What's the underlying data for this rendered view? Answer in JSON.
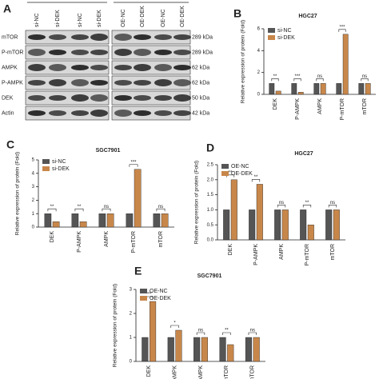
{
  "blot": {
    "panel": "A",
    "columns": [
      "si-NC",
      "si-DEK",
      "si-NC",
      "si-DEK",
      "OE-NC",
      "OE-DEK",
      "OE-NC",
      "OE-DEK"
    ],
    "rows": [
      "mTOR",
      "P-mTOR",
      "AMPK",
      "P-AMPK",
      "DEK",
      "Actin"
    ],
    "sizes": [
      "289 kDa",
      "289 kDa",
      "62 kDa",
      "62 kDa",
      "50 kDa",
      "42 kDa"
    ]
  },
  "chart_data": [
    {
      "type": "bar",
      "panel": "B",
      "title": "HGC27",
      "ylabel": "Relative expression of protein (Fold)",
      "categories": [
        "DEK",
        "P-AMPK",
        "AMPK",
        "P-mTOR",
        "mTOR"
      ],
      "series": [
        {
          "name": "si-NC",
          "color": "#555555",
          "values": [
            1,
            1,
            1,
            1,
            1
          ]
        },
        {
          "name": "si-DEK",
          "color": "#c8874a",
          "values": [
            0.3,
            0.2,
            1,
            5.5,
            1
          ]
        }
      ],
      "annotations": [
        "**",
        "***",
        "ns",
        "***",
        "ns"
      ],
      "ylim": [
        0,
        6
      ],
      "yticks": [
        0,
        2,
        4,
        6
      ],
      "legend": "upper left"
    },
    {
      "type": "bar",
      "panel": "C",
      "title": "SGC7901",
      "ylabel": "Relative expression of protein (Fold)",
      "categories": [
        "DEK",
        "P-AMPK",
        "AMPK",
        "P-mTOR",
        "mTOR"
      ],
      "series": [
        {
          "name": "si-NC",
          "color": "#555555",
          "values": [
            1,
            1,
            1,
            1,
            1
          ]
        },
        {
          "name": "si-DEK",
          "color": "#c8874a",
          "values": [
            0.4,
            0.4,
            1,
            4.3,
            1
          ]
        }
      ],
      "annotations": [
        "**",
        "**",
        "ns",
        "***",
        "ns"
      ],
      "ylim": [
        0,
        5
      ],
      "yticks": [
        0,
        1,
        2,
        3,
        4,
        5
      ],
      "legend": "upper left"
    },
    {
      "type": "bar",
      "panel": "D",
      "title": "HGC27",
      "ylabel": "Relative expression of protein (Fold)",
      "categories": [
        "DEK",
        "P-AMPK",
        "AMPK",
        "P-mTOR",
        "mTOR"
      ],
      "series": [
        {
          "name": "OE-NC",
          "color": "#555555",
          "values": [
            1,
            1,
            1,
            1,
            1
          ]
        },
        {
          "name": "OE-DEK",
          "color": "#c8874a",
          "values": [
            2.0,
            1.85,
            1.0,
            0.5,
            1.0
          ]
        }
      ],
      "annotations": [
        "**",
        "**",
        "ns",
        "**",
        "ns"
      ],
      "ylim": [
        0,
        2.5
      ],
      "yticks": [
        {
          "value": 0,
          "label": "0.0"
        },
        {
          "value": 0.5,
          "label": "0.5"
        },
        {
          "value": 1,
          "label": "1.0"
        },
        {
          "value": 1.5,
          "label": "1.5"
        },
        {
          "value": 2,
          "label": "2.0"
        },
        {
          "value": 2.5,
          "label": "2.5"
        }
      ],
      "legend": "upper left"
    },
    {
      "type": "bar",
      "panel": "E",
      "title": "SGC7901",
      "ylabel": "Relative expression of protein (Fold)",
      "categories": [
        "DEK",
        "P-AMPK",
        "AMPK",
        "P-mTOR",
        "mTOR"
      ],
      "series": [
        {
          "name": "OE-NC",
          "color": "#555555",
          "values": [
            1,
            1,
            1,
            1,
            1
          ]
        },
        {
          "name": "OE-DEK",
          "color": "#c8874a",
          "values": [
            2.5,
            1.3,
            1,
            0.7,
            1
          ]
        }
      ],
      "annotations": [
        "***",
        "*",
        "ns",
        "**",
        "ns"
      ],
      "ylim": [
        0,
        3
      ],
      "yticks": [
        0,
        1,
        2,
        3
      ],
      "legend": "upper left"
    }
  ]
}
